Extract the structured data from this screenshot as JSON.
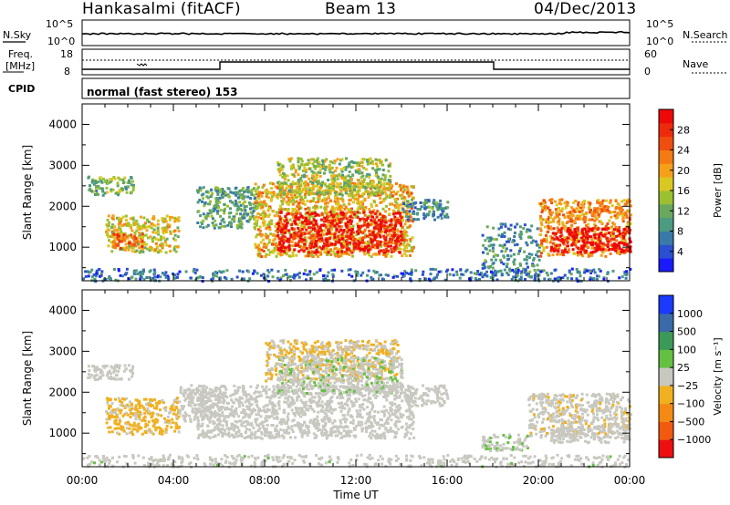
{
  "title": {
    "left": "Hankasalmi (fitACF)",
    "center": "Beam 13",
    "right": "04/Dec/2013"
  },
  "noise_panel": {
    "left_label": "N.Sky",
    "right_label": "N.Search",
    "left_ticks": [
      "10^5",
      "10^0"
    ],
    "right_ticks": [
      "10^5",
      "10^0"
    ]
  },
  "freq_panel": {
    "left_label_1": "Freq.",
    "left_label_2": "[MHz]",
    "cpid_label": "CPID",
    "right_label": "Nave",
    "left_ticks": [
      "18",
      "8"
    ],
    "right_ticks": [
      "60",
      "0"
    ]
  },
  "mode_text": "normal (fast stereo) 153",
  "time_axis": {
    "ticks": [
      "00:00",
      "04:00",
      "08:00",
      "12:00",
      "16:00",
      "20:00",
      "00:00"
    ],
    "label": "Time UT"
  },
  "colors": {
    "panel_bg": "#ffffff",
    "ground_scatter": "#c8c8c0"
  },
  "chart_data": [
    {
      "type": "heatmap",
      "name": "power",
      "ylabel": "Slant Range [km]",
      "y_ticks": [
        "4000",
        "3000",
        "2000",
        "1000"
      ],
      "ylim": [
        180,
        4500
      ],
      "xlim_hours": [
        0,
        24
      ],
      "colorbar": {
        "label": "Power [dB]",
        "ticks": [
          "28",
          "24",
          "20",
          "16",
          "12",
          "8",
          "4"
        ],
        "range": [
          0,
          30
        ],
        "colors": [
          "#1a1aff",
          "#2a4fd0",
          "#3a7aa8",
          "#4c9a80",
          "#6aa860",
          "#9ac030",
          "#d8c820",
          "#f6a01a",
          "#f47a14",
          "#f04e10",
          "#ee2a0c",
          "#ee0808"
        ]
      },
      "regions": [
        {
          "t": [
            0.2,
            2.2
          ],
          "r": [
            2300,
            2750
          ],
          "level": 12
        },
        {
          "t": [
            1.0,
            4.2
          ],
          "r": [
            900,
            1800
          ],
          "level": 16
        },
        {
          "t": [
            1.3,
            2.6
          ],
          "r": [
            1000,
            1350
          ],
          "level": 24
        },
        {
          "t": [
            5.0,
            7.6
          ],
          "r": [
            1500,
            2500
          ],
          "level": 10
        },
        {
          "t": [
            7.5,
            14.5
          ],
          "r": [
            800,
            2600
          ],
          "level": 18
        },
        {
          "t": [
            8.5,
            14.0
          ],
          "r": [
            900,
            1900
          ],
          "level": 28
        },
        {
          "t": [
            8.5,
            13.5
          ],
          "r": [
            2300,
            3200
          ],
          "level": 14
        },
        {
          "t": [
            14.0,
            16.0
          ],
          "r": [
            1700,
            2200
          ],
          "level": 8
        },
        {
          "t": [
            17.5,
            20.0
          ],
          "r": [
            300,
            1600
          ],
          "level": 8
        },
        {
          "t": [
            20.0,
            24.0
          ],
          "r": [
            800,
            2200
          ],
          "level": 20
        },
        {
          "t": [
            20.5,
            24.0
          ],
          "r": [
            900,
            1500
          ],
          "level": 30
        },
        {
          "t": [
            0.0,
            24.0
          ],
          "r": [
            200,
            500
          ],
          "level": 6
        }
      ]
    },
    {
      "type": "heatmap",
      "name": "velocity",
      "ylabel": "Slant Range [km]",
      "y_ticks": [
        "4000",
        "3000",
        "2000",
        "1000"
      ],
      "ylim": [
        180,
        4500
      ],
      "xlim_hours": [
        0,
        24
      ],
      "colorbar": {
        "label": "Velocity  [m s⁻¹]",
        "ticks": [
          "1000",
          "500",
          "100",
          "25",
          "−25",
          "−100",
          "−500",
          "−1000"
        ],
        "range": [
          -1000,
          1000
        ],
        "colors": [
          "#ee1010",
          "#f25a10",
          "#f48a14",
          "#f0b020",
          "#c8c8c0",
          "#64c040",
          "#3c9a58",
          "#3a6aa8",
          "#1a3aff"
        ]
      },
      "regions": [
        {
          "t": [
            0.2,
            2.2
          ],
          "r": [
            2300,
            2700
          ],
          "level": 0,
          "ground": true
        },
        {
          "t": [
            1.0,
            4.2
          ],
          "r": [
            1000,
            1900
          ],
          "level": -150
        },
        {
          "t": [
            4.2,
            6.0
          ],
          "r": [
            1300,
            2200
          ],
          "level": 0,
          "ground": true
        },
        {
          "t": [
            5.0,
            14.5
          ],
          "r": [
            900,
            2200
          ],
          "level": 0,
          "ground": true
        },
        {
          "t": [
            8.0,
            13.8
          ],
          "r": [
            2300,
            3300
          ],
          "level": -120
        },
        {
          "t": [
            8.5,
            14.0
          ],
          "r": [
            2000,
            2900
          ],
          "level": 60
        },
        {
          "t": [
            14.2,
            16.0
          ],
          "r": [
            1700,
            2200
          ],
          "level": 0,
          "ground": true
        },
        {
          "t": [
            17.5,
            19.5
          ],
          "r": [
            600,
            1000
          ],
          "level": 80
        },
        {
          "t": [
            19.5,
            24.0
          ],
          "r": [
            900,
            2000
          ],
          "level": -60
        },
        {
          "t": [
            20.5,
            24.0
          ],
          "r": [
            800,
            1200
          ],
          "level": 0,
          "ground": true
        },
        {
          "t": [
            0.0,
            24.0
          ],
          "r": [
            200,
            500
          ],
          "level": 40
        }
      ]
    }
  ]
}
